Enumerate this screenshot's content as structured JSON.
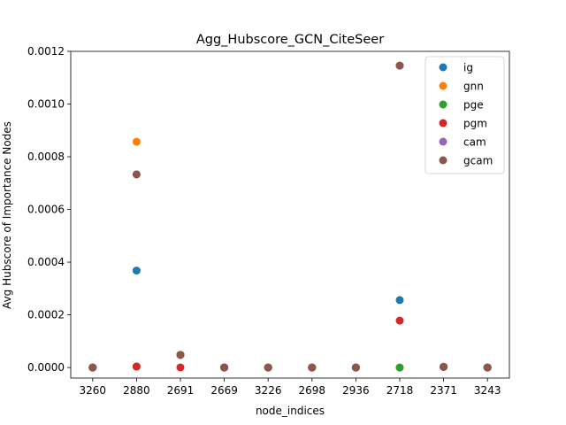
{
  "chart_data": {
    "type": "scatter",
    "title": "Agg_Hubscore_GCN_CiteSeer",
    "xlabel": "node_indices",
    "ylabel": "Avg Hubscore of Importance Nodes",
    "categories": [
      "3260",
      "2880",
      "2691",
      "2669",
      "3226",
      "2698",
      "2936",
      "2718",
      "2371",
      "3243"
    ],
    "ylim": [
      -4e-05,
      0.0012
    ],
    "yticks": [
      "0.0000",
      "0.0002",
      "0.0004",
      "0.0006",
      "0.0008",
      "0.0010",
      "0.0012"
    ],
    "ytick_values": [
      0,
      0.0002,
      0.0004,
      0.0006,
      0.0008,
      0.001,
      0.0012
    ],
    "grid": false,
    "legend_position": "top-right",
    "series": [
      {
        "name": "ig",
        "color": "#1f77b4",
        "values": [
          0,
          0.000368,
          4.8e-05,
          0,
          0,
          0,
          0,
          0.000256,
          2.5e-06,
          0
        ]
      },
      {
        "name": "gnn",
        "color": "#ff7f0e",
        "values": [
          0,
          0.000857,
          4.8e-05,
          0,
          0,
          0,
          0,
          0,
          2.5e-06,
          0
        ]
      },
      {
        "name": "pge",
        "color": "#2ca02c",
        "values": [
          0,
          3.5e-06,
          4.8e-05,
          0,
          0,
          0,
          0,
          0,
          2.5e-06,
          0
        ]
      },
      {
        "name": "pgm",
        "color": "#d62728",
        "values": [
          0,
          3.5e-06,
          5e-07,
          0,
          0,
          0,
          0,
          0.000178,
          2.5e-06,
          0
        ]
      },
      {
        "name": "cam",
        "color": "#9467bd",
        "values": [
          0,
          0.000733,
          4.8e-05,
          0,
          0,
          0,
          0,
          0.001146,
          2.5e-06,
          0
        ]
      },
      {
        "name": "gcam",
        "color": "#8c564b",
        "values": [
          0,
          0.000733,
          4.8e-05,
          0,
          0,
          0,
          0,
          0.001146,
          2.5e-06,
          0
        ]
      }
    ]
  }
}
